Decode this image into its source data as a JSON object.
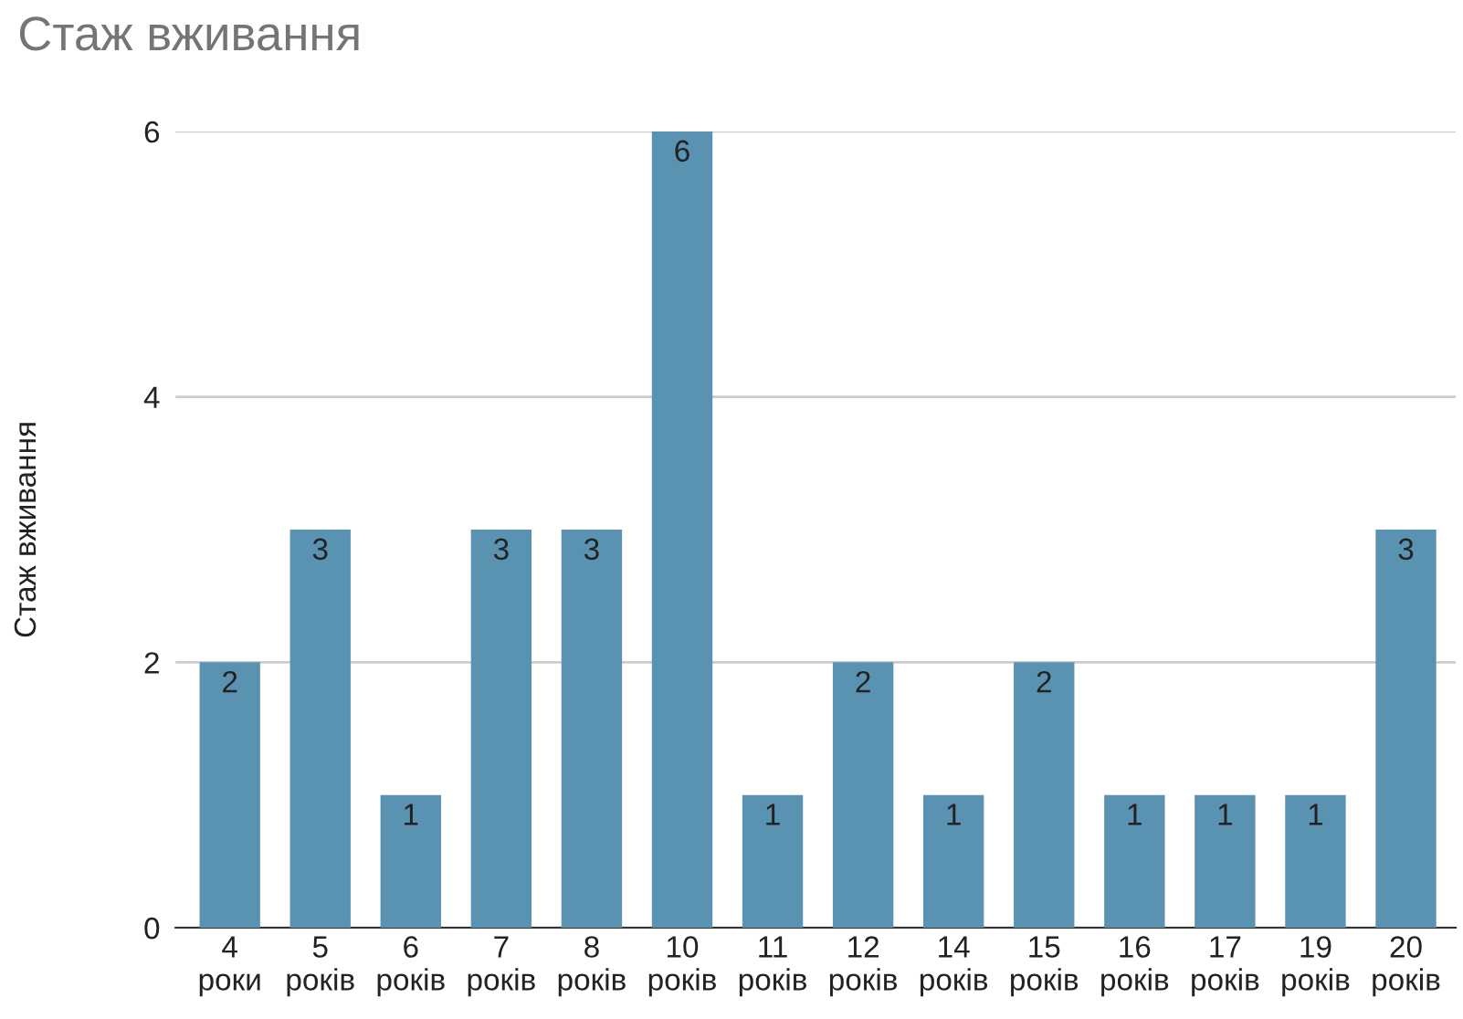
{
  "chart_data": {
    "type": "bar",
    "title": "Стаж вживання",
    "ylabel": "Стаж вживання",
    "categories": [
      "4\nроки",
      "5\nроків",
      "6\nроків",
      "7\nроків",
      "8\nроків",
      "10\nроків",
      "11\nроків",
      "12\nроків",
      "14\nроків",
      "15\nроків",
      "16\nроків",
      "17\nроків",
      "19\nроків",
      "20\nроків"
    ],
    "values": [
      2,
      3,
      1,
      3,
      3,
      6,
      1,
      2,
      1,
      2,
      1,
      1,
      1,
      3
    ],
    "color": "#5a93b1",
    "ylim": [
      0,
      6
    ],
    "yticks": [
      0,
      2,
      4,
      6
    ],
    "grid": "y",
    "data_labels": true,
    "legend": false
  }
}
